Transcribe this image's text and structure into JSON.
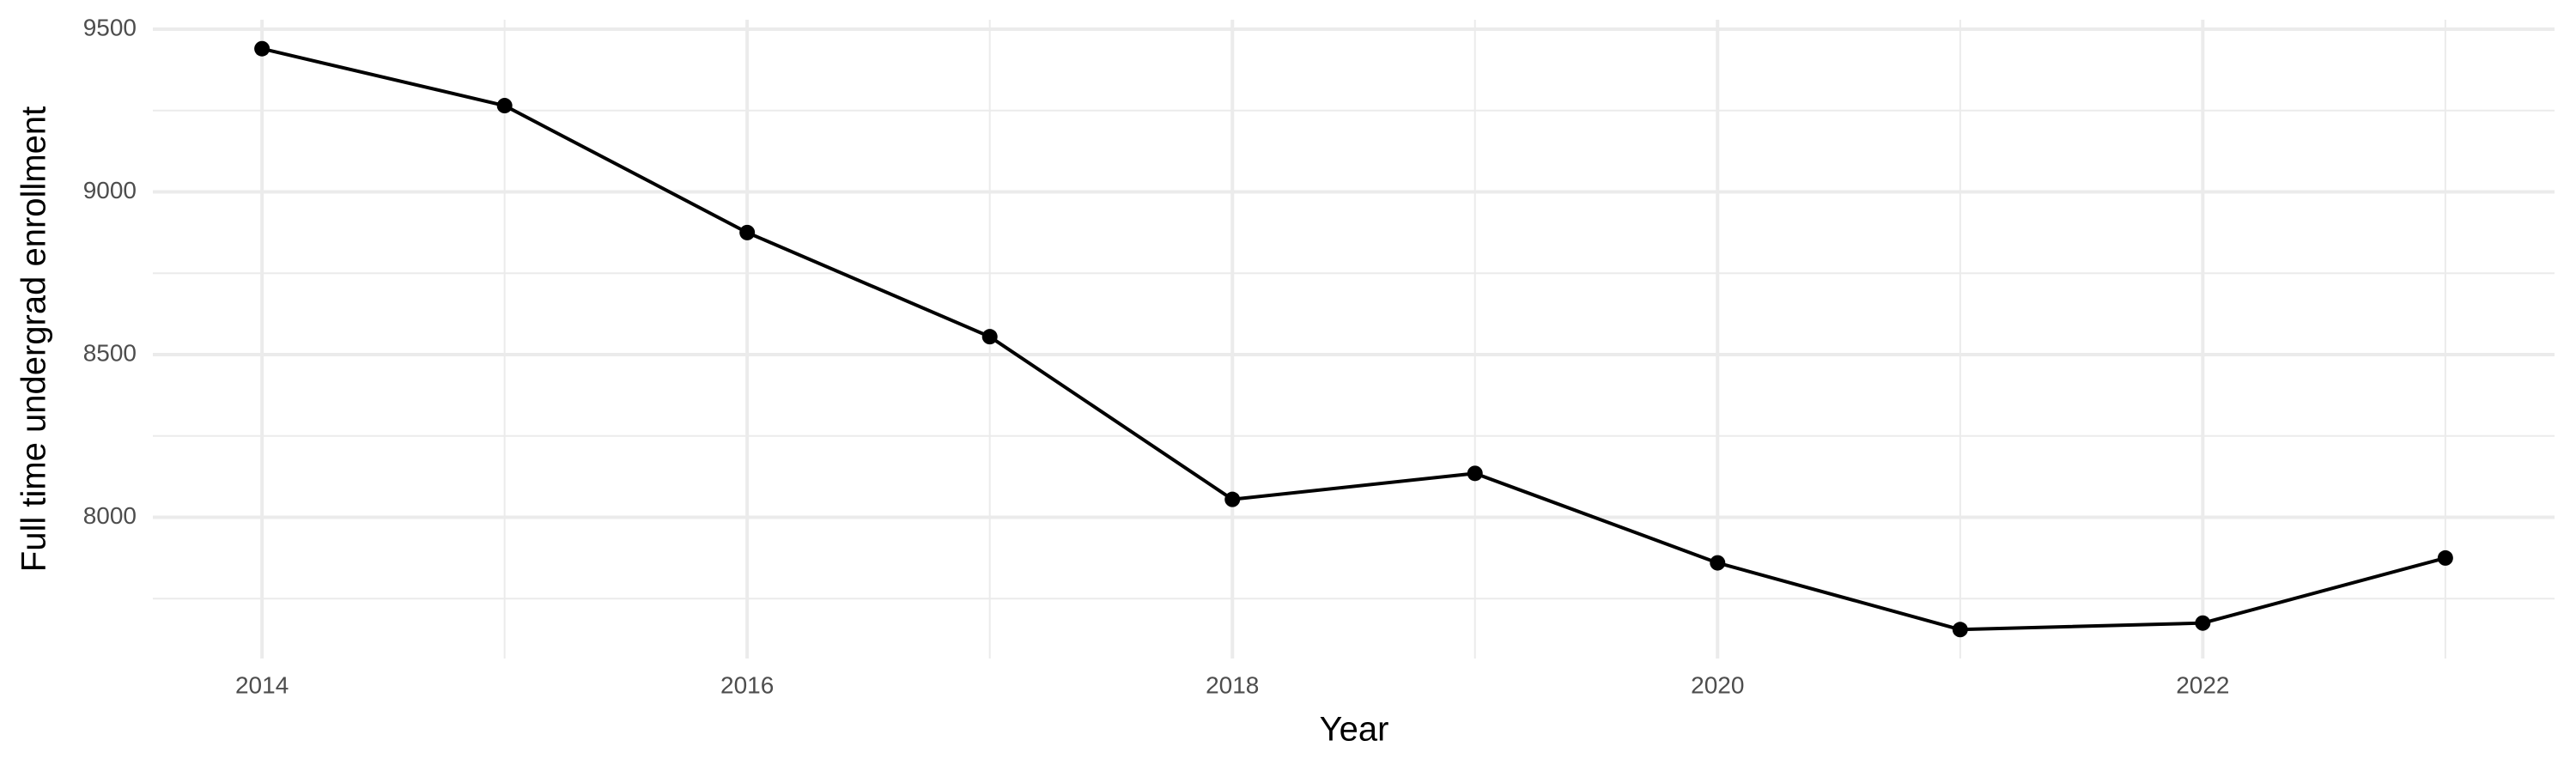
{
  "chart_data": {
    "type": "line",
    "x_label": "Year",
    "y_label": "Full time undergrad enrollment",
    "x": [
      2014,
      2015,
      2016,
      2017,
      2018,
      2019,
      2020,
      2021,
      2022,
      2023
    ],
    "series": [
      {
        "color": "#000000",
        "values": [
          9440,
          9265,
          8875,
          8555,
          8055,
          8135,
          7860,
          7655,
          7675,
          7875
        ]
      }
    ],
    "xlim": [
      2013.55,
      2023.45
    ],
    "xticks": [
      2014,
      2016,
      2018,
      2020,
      2022
    ],
    "x_minor_grid": [
      2015,
      2017,
      2019,
      2021,
      2023
    ],
    "ylim": [
      7566,
      9529
    ],
    "yticks": [
      8000,
      8500,
      9000,
      9500
    ],
    "y_minor_grid": [
      7750,
      8250,
      8750,
      9250
    ],
    "grid": true
  }
}
